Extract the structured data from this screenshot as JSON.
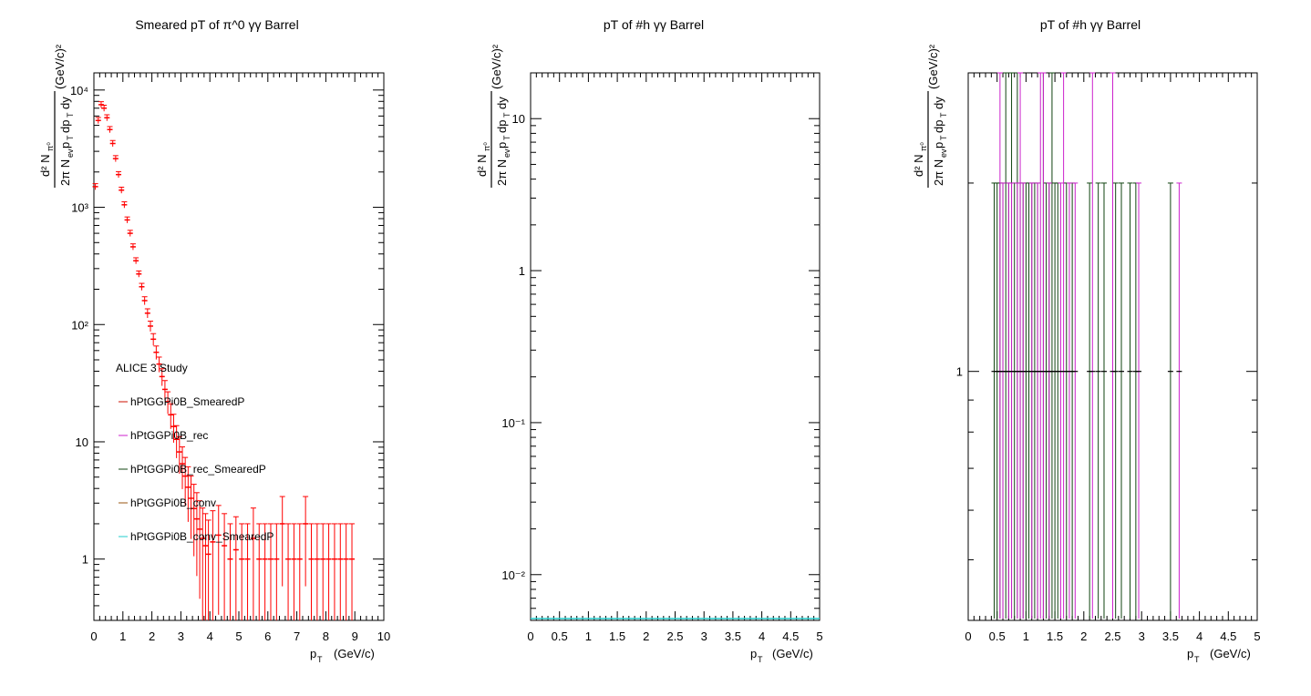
{
  "app": {
    "title": ""
  },
  "chart_data": [
    {
      "type": "scatter",
      "title": "Smeared pT of π^0 γγ Barrel",
      "xlabel": "p_T (GeV/c)",
      "ylabel": "d²N_π⁰ / (2π N_ev p_T dp_T dy) (GeV/c)²",
      "xlim": [
        0,
        10
      ],
      "ylim": [
        0.3,
        14000
      ],
      "yscale": "log",
      "xticks": [
        "0",
        "1",
        "2",
        "3",
        "4",
        "5",
        "6",
        "7",
        "8",
        "9",
        "10"
      ],
      "yticks": [
        "1",
        "10",
        "10²",
        "10³",
        "10⁴"
      ],
      "annotation": "ALICE 3 Study",
      "legend_position": "middle-left",
      "legend": [
        {
          "name": "hPtGGPi0B_SmearedP",
          "color": "#cc1100"
        },
        {
          "name": "hPtGGPi0B_rec",
          "color": "#cc22cc"
        },
        {
          "name": "hPtGGPi0B_rec_SmearedP",
          "color": "#114411"
        },
        {
          "name": "hPtGGPi0B_conv",
          "color": "#995511"
        },
        {
          "name": "hPtGGPi0B_conv_SmearedP",
          "color": "#22cccc"
        }
      ],
      "series": [
        {
          "name": "hPtGGPi0B_SmearedP",
          "color": "#ff0000",
          "x": [
            0.05,
            0.15,
            0.25,
            0.35,
            0.45,
            0.55,
            0.65,
            0.75,
            0.85,
            0.95,
            1.05,
            1.15,
            1.25,
            1.35,
            1.45,
            1.55,
            1.65,
            1.75,
            1.85,
            1.95,
            2.05,
            2.15,
            2.25,
            2.35,
            2.45,
            2.55,
            2.65,
            2.75,
            2.85,
            2.95,
            3.05,
            3.15,
            3.25,
            3.35,
            3.45,
            3.55,
            3.65,
            3.75,
            3.85,
            3.95,
            4.1,
            4.3,
            4.5,
            4.7,
            4.9,
            5.1,
            5.3,
            5.5,
            5.7,
            5.9,
            6.1,
            6.3,
            6.5,
            6.7,
            6.9,
            7.1,
            7.3,
            7.5,
            7.7,
            7.9,
            8.1,
            8.3,
            8.5,
            8.7,
            8.9
          ],
          "y": [
            1500,
            5500,
            7500,
            7000,
            5800,
            4600,
            3500,
            2600,
            1900,
            1400,
            1050,
            780,
            600,
            460,
            350,
            270,
            210,
            160,
            125,
            97,
            75,
            58,
            46,
            36,
            28,
            22,
            17,
            13.5,
            10.5,
            8.2,
            6.5,
            5.1,
            4.1,
            3.3,
            2.7,
            2.2,
            1.8,
            1.5,
            1.3,
            1.1,
            1.4,
            1.6,
            1.3,
            1.0,
            1.2,
            1.0,
            1.0,
            1.5,
            1.0,
            1.0,
            1.0,
            1.0,
            2.0,
            1.0,
            1.0,
            1.0,
            2.0,
            1.0,
            1.0,
            1.0,
            1.0,
            1.0,
            1.0,
            1.0,
            1.0
          ]
        }
      ]
    },
    {
      "type": "scatter",
      "title": "pT of #h γγ Barrel",
      "xlabel": "p_T (GeV/c)",
      "ylabel": "d²N_π⁰ / (2π N_ev p_T dp_T dy) (GeV/c)²",
      "xlim": [
        0,
        5
      ],
      "ylim": [
        0.005,
        20
      ],
      "yscale": "log",
      "xticks": [
        "0",
        "0.5",
        "1",
        "1.5",
        "2",
        "2.5",
        "3",
        "3.5",
        "4",
        "4.5",
        "5"
      ],
      "yticks": [
        "10⁻²",
        "10⁻¹",
        "1",
        "10"
      ],
      "series": [
        {
          "name": "",
          "color": "#22cccc",
          "x": [
            0,
            5
          ],
          "y": [
            0.005,
            0.005
          ]
        }
      ]
    },
    {
      "type": "scatter",
      "title": "pT of #h γγ Barrel",
      "xlabel": "p_T (GeV/c)",
      "ylabel": "d²N_π⁰ / (2π N_ev p_T dp_T dy) (GeV/c)²",
      "xlim": [
        0,
        5
      ],
      "ylim": [
        0.4,
        3.0
      ],
      "yscale": "log",
      "xticks": [
        "0",
        "0.5",
        "1",
        "1.5",
        "2",
        "2.5",
        "3",
        "3.5",
        "4",
        "4.5",
        "5"
      ],
      "yticks": [
        "1"
      ],
      "series": [
        {
          "name": "hPtGGPi0B_rec_SmearedP",
          "color": "#114411",
          "x": [
            0.45,
            0.5,
            0.55,
            0.6,
            0.65,
            0.7,
            0.75,
            0.8,
            0.85,
            0.9,
            0.95,
            1.0,
            1.05,
            1.1,
            1.15,
            1.2,
            1.3,
            1.35,
            1.4,
            1.45,
            1.5,
            1.55,
            1.7,
            1.8,
            2.1,
            2.25,
            2.35,
            2.55,
            2.65,
            2.8,
            2.9,
            3.5
          ],
          "y": [
            1,
            1,
            1,
            1,
            1,
            1,
            1,
            1,
            1,
            1,
            1,
            1,
            1,
            1,
            1,
            1,
            1,
            1,
            1,
            1,
            1,
            1,
            1,
            1,
            1,
            1,
            1,
            1,
            1,
            1,
            1,
            1
          ],
          "yerr_hi": [
            1,
            1,
            1,
            1,
            2,
            1,
            2,
            1,
            2,
            1,
            1,
            1,
            1,
            1,
            1,
            1,
            2,
            1,
            1,
            2,
            1,
            1,
            1,
            1,
            1,
            1,
            1,
            1,
            1,
            1,
            1,
            1
          ]
        },
        {
          "name": "hPtGGPi0B_rec",
          "color": "#cc22cc",
          "x": [
            0.55,
            0.6,
            0.7,
            0.75,
            0.85,
            0.9,
            0.95,
            1.1,
            1.2,
            1.25,
            1.3,
            1.4,
            1.6,
            1.65,
            1.75,
            1.85,
            2.15,
            2.5,
            2.95,
            3.65
          ],
          "y": [
            1,
            1,
            1,
            1,
            1,
            1,
            1,
            1,
            1,
            1,
            1,
            1,
            1,
            1,
            1,
            1,
            1,
            1,
            1,
            1
          ],
          "yerr_hi": [
            2,
            1,
            1,
            1,
            1,
            2,
            1,
            1,
            1,
            2,
            2,
            1,
            1,
            2,
            1,
            1,
            2,
            2,
            1,
            1
          ]
        }
      ]
    }
  ]
}
